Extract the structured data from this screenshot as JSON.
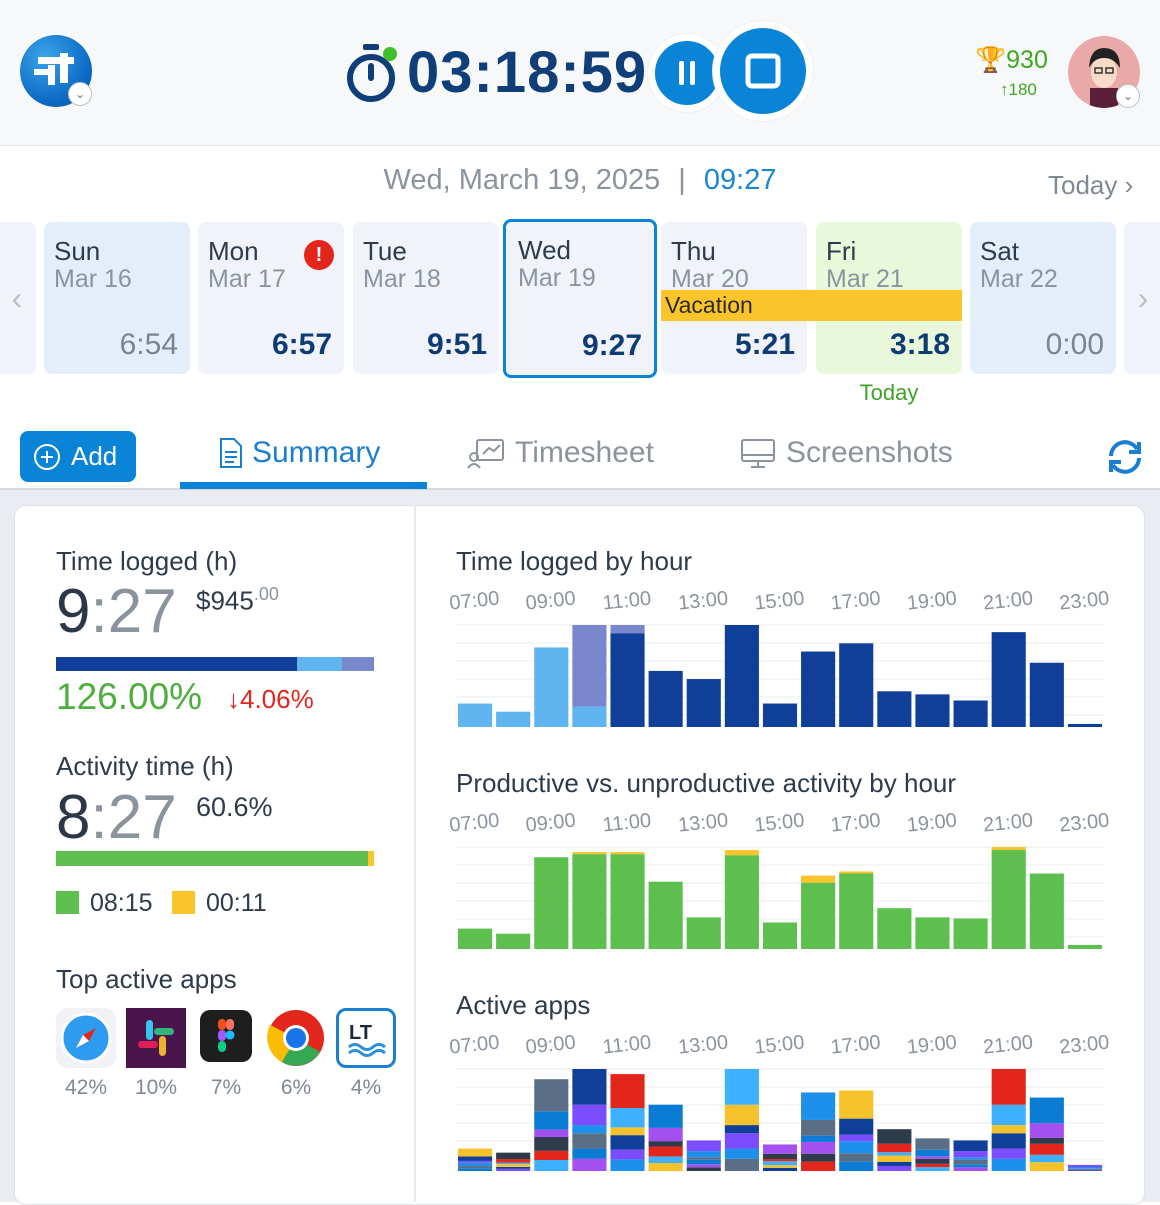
{
  "header": {
    "timer": "03:18:59",
    "score": "930",
    "score_delta": "180"
  },
  "date_bar": {
    "date": "Wed, March 19, 2025",
    "separator": "|",
    "time": "09:27",
    "today_link": "Today"
  },
  "days": [
    {
      "name": "Sun",
      "date": "Mar 16",
      "hours": "6:54"
    },
    {
      "name": "Mon",
      "date": "Mar 17",
      "hours": "6:57",
      "alert": "!"
    },
    {
      "name": "Tue",
      "date": "Mar 18",
      "hours": "9:51"
    },
    {
      "name": "Wed",
      "date": "Mar 19",
      "hours": "9:27"
    },
    {
      "name": "Thu",
      "date": "Mar 20",
      "hours": "5:21"
    },
    {
      "name": "Fri",
      "date": "Mar 21",
      "hours": "3:18"
    },
    {
      "name": "Sat",
      "date": "Mar 22",
      "hours": "0:00"
    }
  ],
  "vacation_label": "Vacation",
  "today_label": "Today",
  "tabs": {
    "add": "Add",
    "summary": "Summary",
    "timesheet": "Timesheet",
    "screenshots": "Screenshots"
  },
  "summary": {
    "time_logged_label": "Time logged (h)",
    "time_logged_h": "9",
    "time_logged_colon": ":",
    "time_logged_m": "27",
    "amount": "$945",
    "amount_cents": ".00",
    "time_bar": {
      "dark": 0.757,
      "light": 0.142,
      "purple": 0.101
    },
    "percent": "126.00%",
    "change": "4.06%",
    "change_arrow": "↓",
    "activity_label": "Activity time (h)",
    "activity_h": "8",
    "activity_colon": ":",
    "activity_m": "27",
    "activity_pct": "60.6%",
    "activity_bar": {
      "productive": 0.98,
      "unproductive": 0.02
    },
    "productive": "08:15",
    "unproductive": "00:11",
    "top_apps_label": "Top active apps",
    "apps": [
      {
        "icon": "safari-icon",
        "pct": "42%"
      },
      {
        "icon": "slack-icon",
        "pct": "10%"
      },
      {
        "icon": "figma-icon",
        "pct": "7%"
      },
      {
        "icon": "chrome-icon",
        "pct": "6%"
      },
      {
        "icon": "languagetool-icon",
        "pct": "4%"
      }
    ]
  },
  "charts": {
    "hour_title": "Time logged by hour",
    "prod_title": "Productive vs. unproductive activity by hour",
    "apps_title": "Active apps"
  },
  "chart_data": [
    {
      "type": "bar",
      "title": "Time logged by hour",
      "tick_labels": [
        "07:00",
        "09:00",
        "11:00",
        "13:00",
        "15:00",
        "17:00",
        "19:00",
        "21:00",
        "23:00"
      ],
      "x": [
        "07:00",
        "08:00",
        "09:00",
        "10:00",
        "11:00",
        "12:00",
        "13:00",
        "14:00",
        "15:00",
        "16:00",
        "17:00",
        "18:00",
        "19:00",
        "20:00",
        "21:00",
        "22:00",
        "23:00"
      ],
      "series": [
        {
          "color": "#0f3f99",
          "values": [
            0,
            0,
            0,
            0,
            0.92,
            0.55,
            0.47,
            1.0,
            0.23,
            0.74,
            0.82,
            0.35,
            0.32,
            0.26,
            0.93,
            0.63,
            0.03
          ]
        },
        {
          "color": "#60b4f0",
          "values": [
            0.23,
            0.15,
            0.78,
            0.2,
            0,
            0,
            0,
            0,
            0,
            0,
            0,
            0,
            0,
            0,
            0,
            0,
            0
          ]
        },
        {
          "color": "#7b87cd",
          "values": [
            0,
            0,
            0,
            0.8,
            0.08,
            0,
            0,
            0,
            0,
            0,
            0,
            0,
            0,
            0,
            0,
            0,
            0
          ]
        }
      ]
    },
    {
      "type": "bar",
      "title": "Productive vs. unproductive activity by hour",
      "tick_labels": [
        "07:00",
        "09:00",
        "11:00",
        "13:00",
        "15:00",
        "17:00",
        "19:00",
        "21:00",
        "23:00"
      ],
      "x": [
        "07:00",
        "08:00",
        "09:00",
        "10:00",
        "11:00",
        "12:00",
        "13:00",
        "14:00",
        "15:00",
        "16:00",
        "17:00",
        "18:00",
        "19:00",
        "20:00",
        "21:00",
        "22:00",
        "23:00"
      ],
      "series": [
        {
          "color": "#5cbf4e",
          "values": [
            0.2,
            0.15,
            0.9,
            0.93,
            0.93,
            0.66,
            0.31,
            0.92,
            0.26,
            0.65,
            0.74,
            0.4,
            0.31,
            0.3,
            0.97,
            0.74,
            0.04
          ]
        },
        {
          "color": "#fcc42b",
          "values": [
            0,
            0,
            0,
            0.02,
            0.02,
            0,
            0,
            0.05,
            0,
            0.07,
            0.02,
            0,
            0,
            0,
            0.03,
            0,
            0
          ]
        }
      ]
    },
    {
      "type": "bar",
      "title": "Active apps",
      "tick_labels": [
        "07:00",
        "09:00",
        "11:00",
        "13:00",
        "15:00",
        "17:00",
        "19:00",
        "21:00",
        "23:00"
      ],
      "x": [
        "07:00",
        "08:00",
        "09:00",
        "10:00",
        "11:00",
        "12:00",
        "13:00",
        "14:00",
        "15:00",
        "16:00",
        "17:00",
        "18:00",
        "19:00",
        "20:00",
        "21:00",
        "22:00",
        "23:00"
      ],
      "totals": [
        0.22,
        0.18,
        0.9,
        1.0,
        0.95,
        0.65,
        0.3,
        1.0,
        0.26,
        0.77,
        0.79,
        0.41,
        0.32,
        0.3,
        1.0,
        0.72,
        0.06
      ]
    }
  ],
  "colors": {
    "accent": "#0a84d6",
    "dark_blue": "#0f3f99",
    "light_blue": "#60b4f0",
    "purple": "#7b87cd",
    "green": "#5cbf4e",
    "yellow": "#fcc42b",
    "red": "#e3261c"
  }
}
